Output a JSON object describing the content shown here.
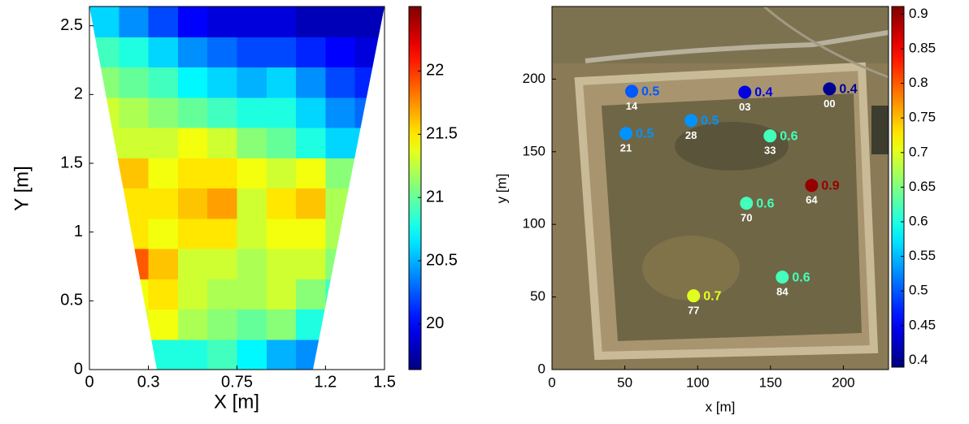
{
  "chart_data": [
    {
      "type": "heatmap",
      "xlabel": "X [m]",
      "ylabel": "Y [m]",
      "x": [
        0.075,
        0.225,
        0.375,
        0.525,
        0.675,
        0.825,
        0.975,
        1.125,
        1.275,
        1.425
      ],
      "y": [
        0.11,
        0.33,
        0.55,
        0.77,
        0.99,
        1.21,
        1.43,
        1.65,
        1.87,
        2.09,
        2.31,
        2.53
      ],
      "z": [
        [
          21.0,
          21.0,
          20.8,
          20.8,
          20.9,
          20.7,
          20.5,
          20.4,
          20.4,
          20.4
        ],
        [
          21.3,
          21.3,
          21.4,
          21.2,
          21.1,
          21.0,
          21.1,
          20.8,
          20.6,
          20.6
        ],
        [
          21.4,
          21.4,
          21.5,
          21.3,
          21.2,
          21.2,
          21.3,
          21.1,
          20.9,
          20.8
        ],
        [
          21.9,
          21.9,
          21.6,
          21.3,
          21.3,
          21.2,
          21.3,
          21.3,
          21.1,
          21.0
        ],
        [
          21.5,
          21.5,
          21.4,
          21.5,
          21.5,
          21.3,
          21.4,
          21.4,
          21.2,
          21.0
        ],
        [
          21.5,
          21.5,
          21.5,
          21.6,
          21.7,
          21.3,
          21.5,
          21.6,
          21.2,
          21.0
        ],
        [
          21.6,
          21.6,
          21.4,
          21.5,
          21.5,
          21.4,
          21.3,
          21.4,
          21.1,
          21.0
        ],
        [
          21.3,
          21.3,
          21.3,
          21.4,
          21.3,
          21.1,
          21.0,
          20.8,
          20.6,
          20.6
        ],
        [
          21.3,
          21.2,
          21.1,
          21.0,
          20.9,
          20.8,
          20.8,
          20.6,
          20.4,
          20.3
        ],
        [
          21.1,
          21.0,
          20.9,
          20.7,
          20.6,
          20.5,
          20.6,
          20.4,
          20.2,
          20.1
        ],
        [
          20.9,
          20.8,
          20.6,
          20.4,
          20.3,
          20.2,
          20.2,
          20.1,
          20.0,
          19.9
        ],
        [
          20.6,
          20.4,
          20.2,
          20.0,
          19.9,
          19.9,
          19.9,
          19.8,
          19.8,
          19.8
        ]
      ],
      "xlim": [
        0,
        1.5
      ],
      "xticks": [
        0,
        0.3,
        0.75,
        1.2,
        1.5
      ],
      "ylim": [
        0,
        2.64
      ],
      "yticks": [
        0,
        0.5,
        1,
        1.5,
        2,
        2.5
      ],
      "clim": [
        19.64,
        22.51
      ],
      "cticks": [
        20,
        20.5,
        21,
        21.5,
        22
      ],
      "colormap": "jet"
    },
    {
      "type": "scatter",
      "xlabel": "x [m]",
      "ylabel": "y [m]",
      "series": [
        {
          "x": [
            54.7,
            132.4,
            190.5,
            95.5,
            50.8,
            149.7,
            178.2,
            133.5,
            158.1,
            97.2
          ],
          "y": [
            191.6,
            191.0,
            193.3,
            171.5,
            162.6,
            160.9,
            126.8,
            114.5,
            63.7,
            50.8
          ],
          "values": [
            0.5,
            0.44,
            0.4,
            0.53,
            0.53,
            0.62,
            0.9,
            0.62,
            0.62,
            0.7
          ],
          "value_labels": [
            "0.5",
            "0.4",
            "0.4",
            "0.5",
            "0.5",
            "0.6",
            "0.9",
            "0.6",
            "0.6",
            "0.7"
          ],
          "labels": [
            "14",
            "03",
            "00",
            "28",
            "21",
            "33",
            "64",
            "70",
            "84",
            "77"
          ]
        }
      ],
      "xlim": [
        0,
        231
      ],
      "xticks": [
        0,
        50,
        100,
        150,
        200
      ],
      "ylim": [
        0,
        250
      ],
      "yticks": [
        0,
        50,
        100,
        150,
        200
      ],
      "clim": [
        0.39,
        0.911
      ],
      "cticks": [
        0.4,
        0.45,
        0.5,
        0.55,
        0.6,
        0.65,
        0.7,
        0.75,
        0.8,
        0.85,
        0.9
      ],
      "colormap": "jet"
    }
  ]
}
